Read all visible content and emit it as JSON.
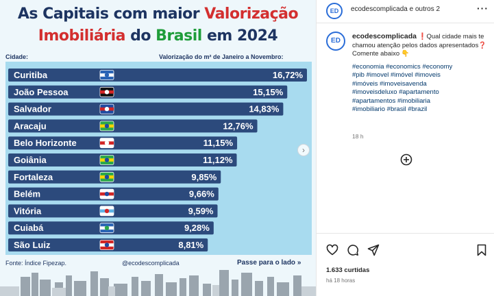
{
  "post": {
    "title_line1_part1": "As Capitais com maior ",
    "title_line1_part2": "Valorização",
    "title_line2_part1": "Imobiliária",
    "title_line2_part2": " do ",
    "title_line2_part3": "Brasil",
    "title_line2_part4": " em 2024",
    "col_city": "Cidade:",
    "col_value": "Valorização do m² de Janeiro a Novembro:",
    "source": "Fonte: Índice Fipezap.",
    "handle": "@ecodescomplicada",
    "swipe": "Passe para o lado »",
    "next_arrow": "›",
    "colors": {
      "navy": "#1d3461",
      "red": "#d32f2f",
      "green": "#1f9d3a",
      "bar": "#2c4a7c",
      "chart_bg": "#a8dbef"
    }
  },
  "chart_data": {
    "type": "bar",
    "orientation": "horizontal",
    "categories": [
      "Curitiba",
      "João Pessoa",
      "Salvador",
      "Aracaju",
      "Belo Horizonte",
      "Goiânia",
      "Fortaleza",
      "Belém",
      "Vitória",
      "Cuiabá",
      "São Luiz"
    ],
    "values": [
      16.72,
      15.15,
      14.83,
      12.76,
      11.15,
      11.12,
      9.85,
      9.66,
      9.59,
      9.28,
      8.81
    ],
    "value_labels": [
      "16,72%",
      "15,15%",
      "14,83%",
      "12,76%",
      "11,15%",
      "11,12%",
      "9,85%",
      "9,66%",
      "9,59%",
      "9,28%",
      "8,81%"
    ],
    "flags": [
      "curitiba-flag",
      "joao-pessoa-flag",
      "salvador-flag",
      "aracaju-flag",
      "belo-horizonte-flag",
      "goiania-flag",
      "fortaleza-flag",
      "belem-flag",
      "vitoria-flag",
      "cuiaba-flag",
      "sao-luiz-flag"
    ],
    "xlim": [
      0,
      16.72
    ]
  },
  "side": {
    "avatar_text": "ED",
    "header_user": "ecodescomplicada e outros 2",
    "more": "···",
    "caption_user": "ecodescomplicada",
    "caption_text": "❗Qual cidade mais te chamou atenção pelos dados apresentados❓ Comente abaixo 👇",
    "hashtags": [
      "#economia #economics #economy",
      "#pib #imovel #imóvel #imoveis",
      "#imóveis #imoveisavenda",
      "#imoveisdeluxo #apartamento",
      "#apartamentos #imobiliaria",
      "#imobiliario #brasil #brazil"
    ],
    "caption_time": "18 h",
    "likes": "1.633 curtidas",
    "post_time": "há 18 horas",
    "icons": [
      "heart-icon",
      "comment-icon",
      "share-icon",
      "bookmark-icon",
      "add-comment-icon"
    ]
  }
}
